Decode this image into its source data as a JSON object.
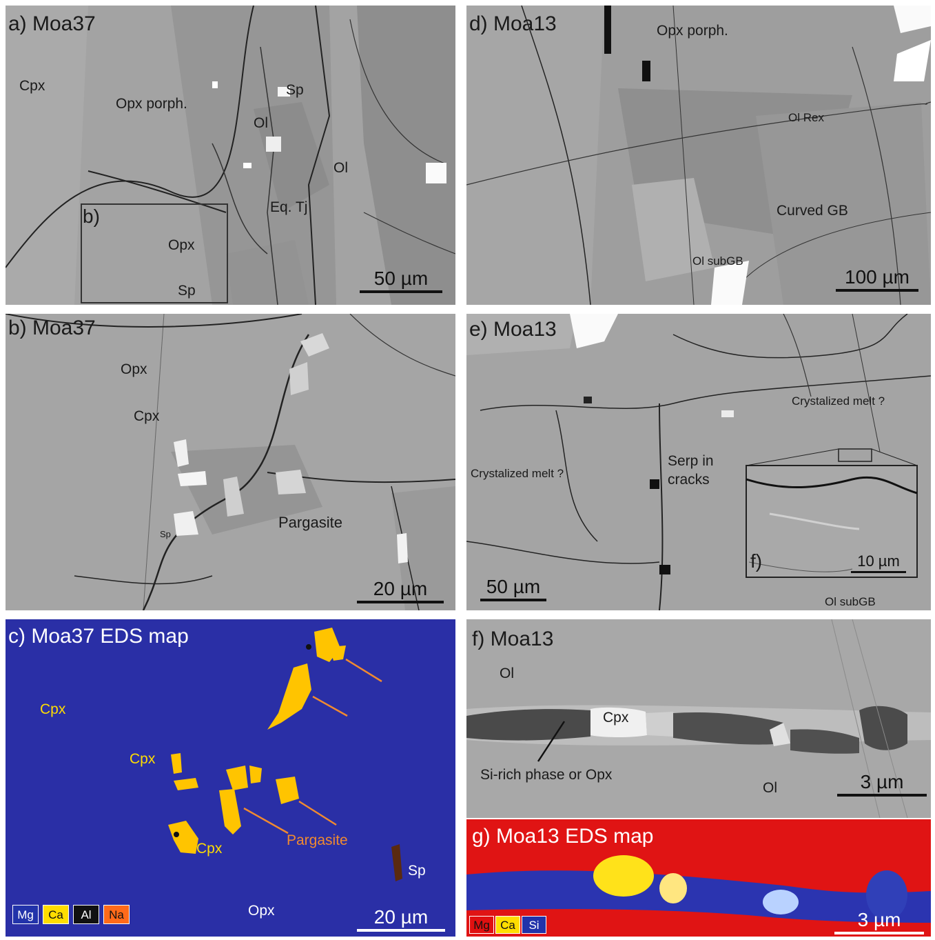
{
  "panels": {
    "a": {
      "title": "a) Moa37",
      "labels": {
        "cpx": "Cpx",
        "opx_porph": "Opx porph.",
        "sp1": "Sp",
        "ol1": "Ol",
        "ol2": "Ol",
        "eq_tj": "Eq. Tj",
        "b_box": "b)",
        "opx": "Opx",
        "sp2": "Sp"
      },
      "scale": "50 µm"
    },
    "b": {
      "title": "b) Moa37",
      "labels": {
        "opx": "Opx",
        "cpx": "Cpx",
        "sp": "Sp",
        "pargasite": "Pargasite"
      },
      "scale": "20 µm"
    },
    "c": {
      "title": "c) Moa37 EDS map",
      "labels": {
        "cpx1": "Cpx",
        "cpx2": "Cpx",
        "cpx3": "Cpx",
        "pargasite": "Pargasite",
        "sp": "Sp",
        "opx": "Opx"
      },
      "legend": [
        {
          "label": "Mg",
          "color": "#2233aa",
          "text_color": "#ffffff"
        },
        {
          "label": "Ca",
          "color": "#ffdd00",
          "text_color": "#111111"
        },
        {
          "label": "Al",
          "color": "#111111",
          "text_color": "#ffffff"
        },
        {
          "label": "Na",
          "color": "#ff6a1a",
          "text_color": "#111111"
        }
      ],
      "scale": "20 µm"
    },
    "d": {
      "title": "d) Moa13",
      "labels": {
        "opx_porph": "Opx porph.",
        "ol_rex": "Ol Rex",
        "curved_gb": "Curved GB",
        "ol_subgb": "Ol subGB"
      },
      "scale": "100 µm"
    },
    "e": {
      "title": "e) Moa13",
      "labels": {
        "crystalized_melt_1": "Crystalized melt ?",
        "crystalized_melt_2": "Crystalized melt ?",
        "serp": "Serp in cracks",
        "f_inset": "f)",
        "ol_subgb": "Ol subGB"
      },
      "scale": "50 µm",
      "inset_scale": "10 µm"
    },
    "f": {
      "title": "f) Moa13",
      "labels": {
        "ol1": "Ol",
        "cpx": "Cpx",
        "si_rich": "Si-rich phase or Opx",
        "ol2": "Ol"
      },
      "scale": "3 µm"
    },
    "g": {
      "title": "g) Moa13 EDS map",
      "legend": [
        {
          "label": "Mg",
          "color": "#e01010",
          "text_color": "#111111"
        },
        {
          "label": "Ca",
          "color": "#ffdd00",
          "text_color": "#111111"
        },
        {
          "label": "Si",
          "color": "#2233aa",
          "text_color": "#ffffff"
        }
      ],
      "scale": "3 µm"
    }
  },
  "colors": {
    "sem_gray": "#9d9d9d",
    "eds_blue": "#2a2fa6",
    "eds_red": "#e01414",
    "ca_yellow": "#ffd400",
    "arrow_orange": "#f08a30"
  }
}
